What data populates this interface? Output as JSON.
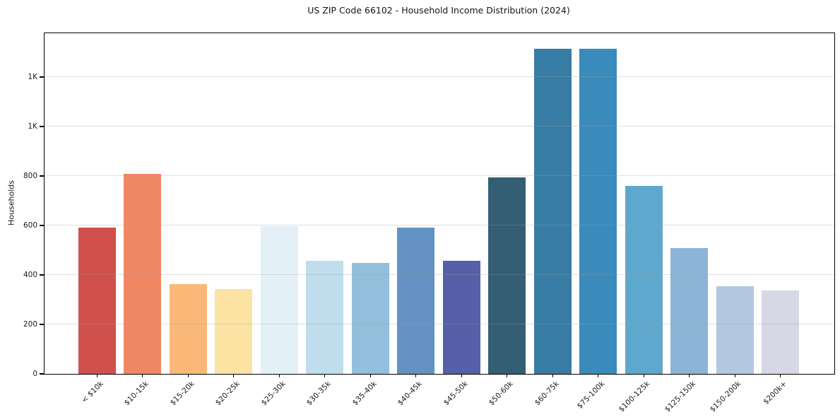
{
  "figure": {
    "background_color": "#ffffff",
    "axis_color": "#000000",
    "grid_color": "#e6e6e6",
    "text_color": "#1a1a1a"
  },
  "chart_data": {
    "type": "bar",
    "title": "US ZIP Code 66102 - Household Income Distribution (2024)",
    "xlabel": "",
    "ylabel": "Households",
    "categories": [
      "< $10k",
      "$10-15k",
      "$15-20k",
      "$20-25k",
      "$25-30k",
      "$30-35k",
      "$35-40k",
      "$40-45k",
      "$45-50k",
      "$50-60k",
      "$60-75k",
      "$75-100k",
      "$100-125k",
      "$125-150k",
      "$150-200k",
      "$200k+"
    ],
    "values": [
      592,
      808,
      363,
      343,
      597,
      457,
      449,
      592,
      457,
      794,
      1314,
      1314,
      760,
      509,
      354,
      337
    ],
    "bar_colors": [
      "#d0504c",
      "#f08764",
      "#fab878",
      "#fbe3a4",
      "#e3f0f7",
      "#bfddec",
      "#92bfdb",
      "#6492c4",
      "#5560a9",
      "#345e73",
      "#377ca4",
      "#3a8abc",
      "#5fa8cd",
      "#8cb4d6",
      "#b4c7e0",
      "#d6d8e5"
    ],
    "ylim": [
      0,
      1377
    ],
    "yticks": [
      {
        "value": 0,
        "label": "0"
      },
      {
        "value": 200,
        "label": "200"
      },
      {
        "value": 400,
        "label": "400"
      },
      {
        "value": 600,
        "label": "600"
      },
      {
        "value": 800,
        "label": "800"
      },
      {
        "value": 1000,
        "label": "1K"
      },
      {
        "value": 1200,
        "label": "1K"
      }
    ],
    "grid": "horizontal",
    "legend": null
  }
}
